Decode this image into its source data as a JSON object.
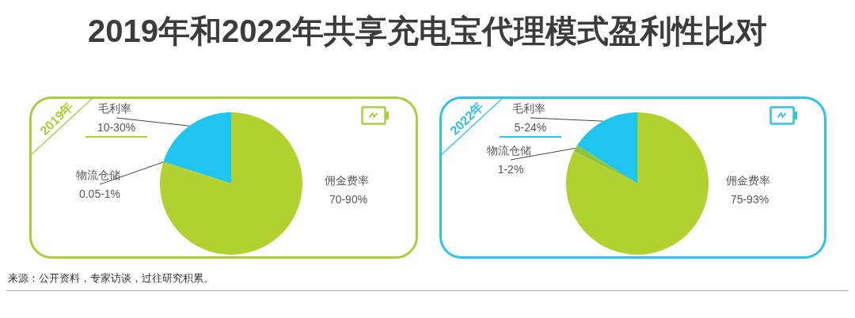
{
  "chart_data": [
    {
      "type": "pie",
      "title": "2019年和2022年共享充电宝代理模式盈利性比对",
      "subtitle": "2019年",
      "categories": [
        "毛利率 10-30%",
        "物流仓储 0.05-1%",
        "佣金费率 70-90%"
      ],
      "values": [
        20,
        0.3,
        79.7
      ],
      "colors": [
        "#1fc4ef",
        "#8fc33a",
        "#b1d12f"
      ],
      "annotations": [
        "来源：公开资料，专家访谈，过往研究积累。"
      ]
    },
    {
      "type": "pie",
      "subtitle": "2022年",
      "categories": [
        "毛利率 5-24%",
        "物流仓储 1-2%",
        "佣金费率 75-93%"
      ],
      "values": [
        16,
        1.5,
        82.5
      ],
      "colors": [
        "#1fc4ef",
        "#8fc33a",
        "#b1d12f"
      ]
    }
  ]
}
